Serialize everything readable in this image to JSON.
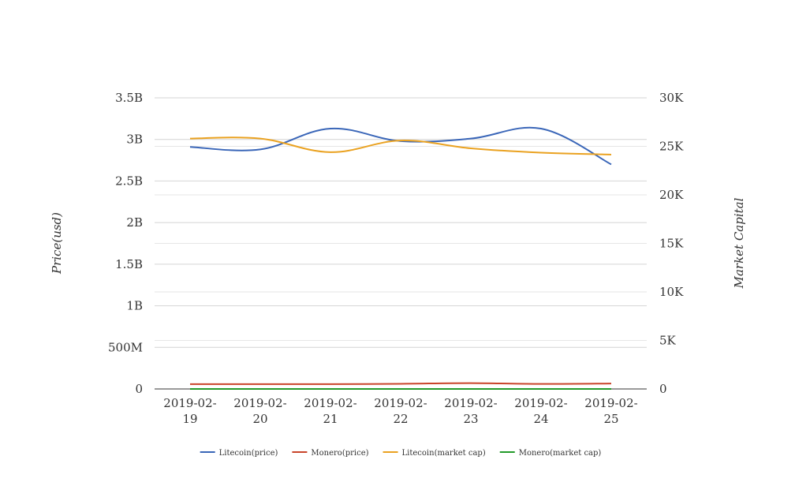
{
  "chart_data": {
    "type": "line",
    "categories": [
      [
        "2019-02-",
        "19"
      ],
      [
        "2019-02-",
        "20"
      ],
      [
        "2019-02-",
        "21"
      ],
      [
        "2019-02-",
        "22"
      ],
      [
        "2019-02-",
        "23"
      ],
      [
        "2019-02-",
        "24"
      ],
      [
        "2019-02-",
        "25"
      ]
    ],
    "left_axis": {
      "label": "Price(usd)",
      "ticks": [
        0,
        500000000,
        1000000000,
        1500000000,
        2000000000,
        2500000000,
        3000000000,
        3500000000
      ],
      "tick_labels": [
        "0",
        "500M",
        "1B",
        "1.5B",
        "2B",
        "2.5B",
        "3B",
        "3.5B"
      ],
      "ylim": [
        0,
        3500000000
      ]
    },
    "right_axis": {
      "label": "Market Capital",
      "ticks": [
        0,
        5000,
        10000,
        15000,
        20000,
        25000,
        30000
      ],
      "tick_labels": [
        "0",
        "5K",
        "10K",
        "15K",
        "20K",
        "25K",
        "30K"
      ],
      "ylim": [
        0,
        30000
      ]
    },
    "series": [
      {
        "name": "Litecoin(price)",
        "axis": "left",
        "color": "#3a66b8",
        "values": [
          2910000000,
          2880000000,
          3130000000,
          2980000000,
          3010000000,
          3130000000,
          2700000000
        ]
      },
      {
        "name": "Monero(price)",
        "axis": "left",
        "color": "#c9442a",
        "values": [
          58000000,
          58000000,
          58000000,
          62000000,
          70000000,
          60000000,
          65000000
        ]
      },
      {
        "name": "Litecoin(market cap)",
        "axis": "right",
        "color": "#eaa221",
        "values": [
          25800,
          25800,
          24400,
          25600,
          24800,
          24350,
          24150
        ]
      },
      {
        "name": "Monero(market cap)",
        "axis": "right",
        "color": "#239a2a",
        "values": [
          0,
          0,
          0,
          0,
          0,
          0,
          0
        ]
      }
    ],
    "grid": true,
    "legend_position": "bottom-center"
  }
}
